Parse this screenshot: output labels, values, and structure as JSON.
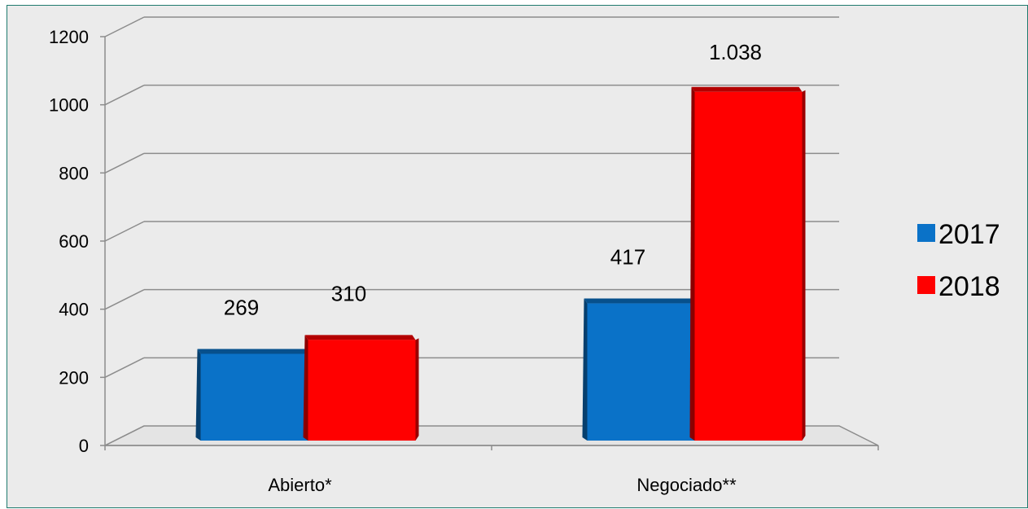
{
  "chart_data": {
    "type": "bar",
    "categories": [
      "Abierto*",
      "Negociado**"
    ],
    "series": [
      {
        "name": "2017",
        "values": [
          269,
          417
        ],
        "labels": [
          "269",
          "417"
        ],
        "color": "#0a72c8"
      },
      {
        "name": "2018",
        "values": [
          310,
          1038
        ],
        "labels": [
          "310",
          "1.038"
        ],
        "color": "#ff0000"
      }
    ],
    "ylim": [
      0,
      1200
    ],
    "yticks": [
      "0",
      "200",
      "400",
      "600",
      "800",
      "1000",
      "1200"
    ],
    "grid": true,
    "legend": "right",
    "style": "3d-clustered"
  }
}
